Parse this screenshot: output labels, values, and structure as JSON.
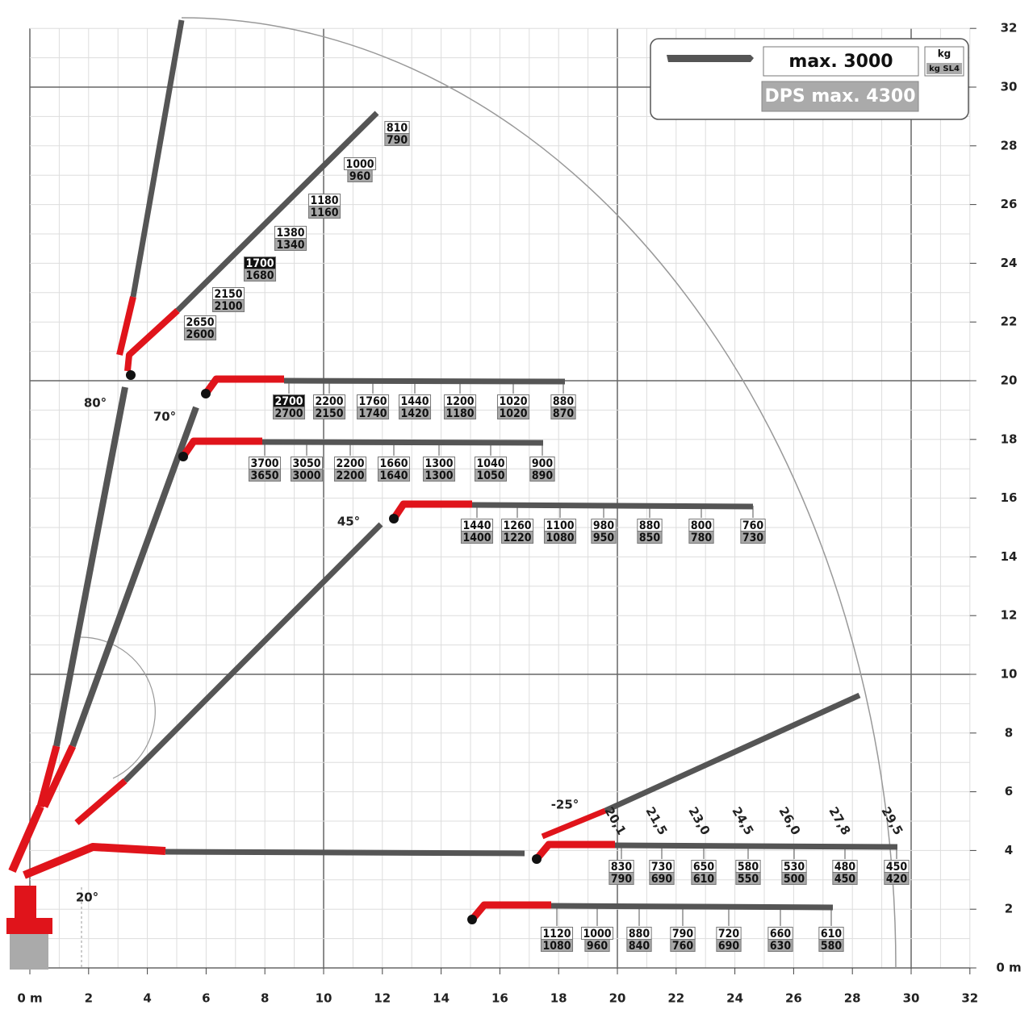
{
  "axes": {
    "x_ticks": [
      {
        "value": 0,
        "label": "0 m"
      },
      2,
      4,
      6,
      8,
      10,
      12,
      14,
      16,
      18,
      20,
      22,
      24,
      26,
      28,
      30,
      32
    ],
    "y_ticks": [
      {
        "value": 0,
        "label": "0 m"
      },
      2,
      4,
      6,
      8,
      10,
      12,
      14,
      16,
      18,
      20,
      22,
      24,
      26,
      28,
      30,
      32
    ]
  },
  "legend": {
    "max_load": "max. 3000",
    "unit": "kg",
    "unit_sl4": "kg SL4",
    "dps_max": "DPS max. 4300"
  },
  "angles": [
    "80°",
    "70°",
    "45°",
    "20°",
    "-25°"
  ],
  "booms": [
    {
      "loads": [
        [
          2650,
          2600
        ],
        [
          2150,
          2100
        ],
        [
          1700,
          1680
        ],
        [
          1380,
          1340
        ],
        [
          1180,
          1160
        ],
        [
          1000,
          960
        ],
        [
          810,
          790
        ]
      ]
    },
    {
      "loads": [
        [
          2700,
          2700
        ],
        [
          2200,
          2150
        ],
        [
          1760,
          1740
        ],
        [
          1440,
          1420
        ],
        [
          1200,
          1180
        ],
        [
          1020,
          1020
        ],
        [
          880,
          870
        ]
      ]
    },
    {
      "loads": [
        [
          3700,
          3650
        ],
        [
          3050,
          3000
        ],
        [
          2200,
          2200
        ],
        [
          1660,
          1640
        ],
        [
          1300,
          1300
        ],
        [
          1040,
          1050
        ],
        [
          900,
          890
        ]
      ]
    },
    {
      "loads": [
        [
          1440,
          1400
        ],
        [
          1260,
          1220
        ],
        [
          1100,
          1080
        ],
        [
          980,
          950
        ],
        [
          880,
          850
        ],
        [
          800,
          780
        ],
        [
          760,
          730
        ]
      ]
    },
    {
      "loads": [
        [
          830,
          790
        ],
        [
          730,
          690
        ],
        [
          650,
          610
        ],
        [
          580,
          550
        ],
        [
          530,
          500
        ],
        [
          480,
          450
        ],
        [
          450,
          420
        ]
      ]
    },
    {
      "loads": [
        [
          1120,
          1080
        ],
        [
          1000,
          960
        ],
        [
          880,
          840
        ],
        [
          790,
          760
        ],
        [
          720,
          690
        ],
        [
          660,
          630
        ],
        [
          610,
          580
        ]
      ]
    }
  ],
  "reach_labels": [
    "20,1",
    "21,5",
    "23,0",
    "24,5",
    "26,0",
    "27,8",
    "29,5"
  ]
}
